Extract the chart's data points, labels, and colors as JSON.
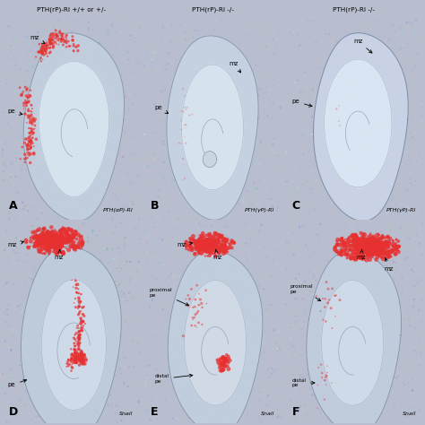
{
  "figsize": [
    4.74,
    4.74
  ],
  "dpi": 100,
  "col_titles": [
    "PTH(rP)-RI +/+ or +/-",
    "PTH(rP)-RI -/-",
    "PTH(rP)-RI -/-"
  ],
  "panel_labels": [
    "A",
    "B",
    "C",
    "D",
    "E",
    "F"
  ],
  "italic_labels": [
    "PTH(αP)-RI",
    "PTH(γP)-RI",
    "PTH(γP)-RI",
    "Snail",
    "Snail",
    "Snail"
  ],
  "bg_color": "#b8bece",
  "panel_bg": [
    "#aab4c8",
    "#b0bace",
    "#b2bcd0",
    "#a8b2c4",
    "#b0bace",
    "#aab4c8"
  ],
  "tissue_bg": "#c0ccd8",
  "kidney_fill": "#ccd8e4",
  "kidney_border": "#8898b0",
  "inner_fill": "#d8e4f0",
  "red_stain": "#e83030",
  "cell_color": "#8090a8"
}
